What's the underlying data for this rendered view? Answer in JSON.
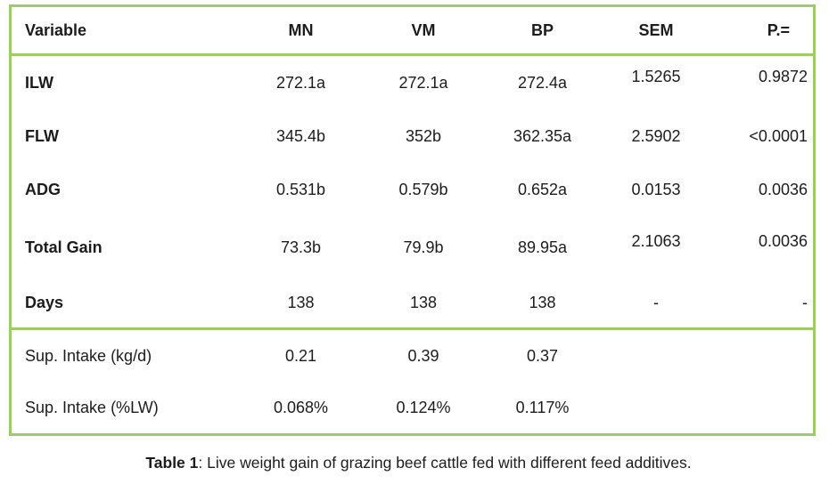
{
  "colors": {
    "border_green": "#9dcb68"
  },
  "table": {
    "columns": [
      "Variable",
      "MN",
      "VM",
      "BP",
      "SEM",
      "P.="
    ],
    "main_rows": [
      {
        "label": "ILW",
        "values": [
          "272.1a",
          "272.1a",
          "272.4a",
          "1.5265",
          "0.9872"
        ]
      },
      {
        "label": "FLW",
        "values": [
          "345.4b",
          "352b",
          "362.35a",
          "2.5902",
          "<0.0001"
        ]
      },
      {
        "label": "ADG",
        "values": [
          "0.531b",
          "0.579b",
          "0.652a",
          "0.0153",
          "0.0036"
        ]
      },
      {
        "label": "Total Gain",
        "values": [
          "73.3b",
          "79.9b",
          "89.95a",
          "2.1063",
          "0.0036"
        ]
      },
      {
        "label": "Days",
        "values": [
          "138",
          "138",
          "138",
          "-",
          "-"
        ]
      }
    ],
    "intake_rows": [
      {
        "label": "Sup. Intake (kg/d)",
        "values": [
          "0.21",
          "0.39",
          "0.37",
          "",
          ""
        ]
      },
      {
        "label": "Sup. Intake (%LW)",
        "values": [
          "0.068%",
          "0.124%",
          "0.117%",
          "",
          ""
        ]
      }
    ]
  },
  "caption": {
    "prefix": "Table 1",
    "text": ": Live weight gain of grazing beef cattle fed with different feed additives."
  }
}
